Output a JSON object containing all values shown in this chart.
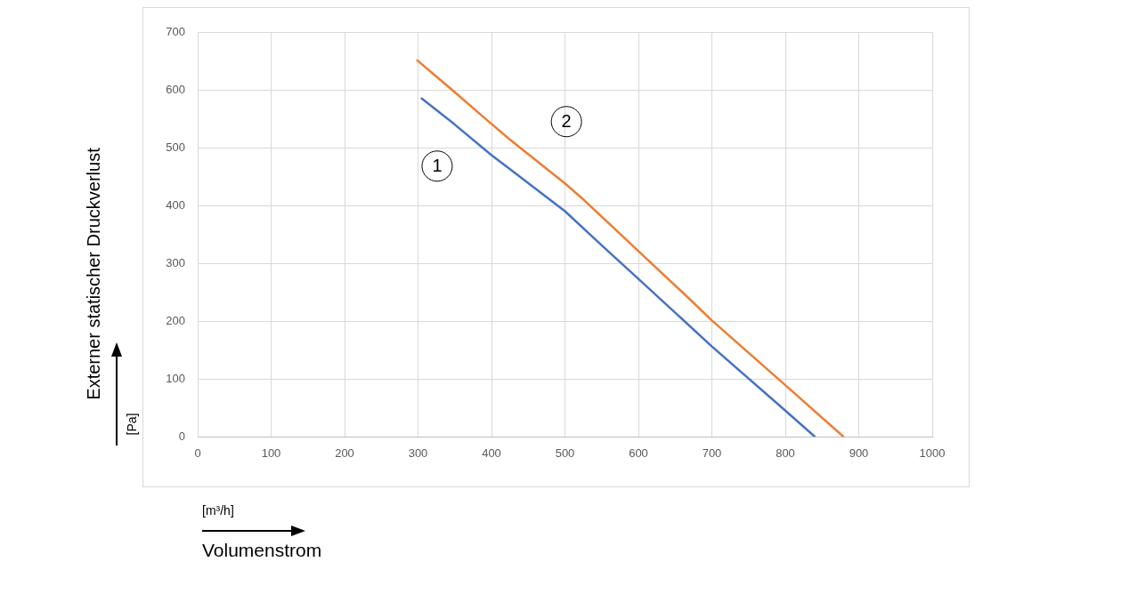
{
  "chart_data": {
    "type": "line",
    "xlabel": "Volumenstrom",
    "ylabel": "Externer statischer Druckverlust",
    "annotations": [
      "[m³/h]",
      "[Pa]",
      {
        "text": "1",
        "x": 326,
        "y": 468
      },
      {
        "text": "2",
        "x": 502,
        "y": 545
      }
    ],
    "series": [
      {
        "color": "#4472c4",
        "x": [
          305,
          349,
          400,
          424,
          500,
          550,
          600,
          700,
          800,
          840
        ],
        "values": [
          585,
          541,
          487,
          464,
          390,
          331,
          273,
          156,
          45,
          0
        ]
      },
      {
        "color": "#ed7d31",
        "x": [
          299,
          349,
          400,
          424,
          500,
          527,
          600,
          668,
          700,
          800,
          879
        ],
        "values": [
          651,
          597,
          541,
          515,
          438,
          408,
          321,
          240,
          201,
          89,
          0
        ]
      }
    ],
    "xlim": [
      0,
      1000
    ],
    "xticks": [
      0,
      100,
      200,
      300,
      400,
      500,
      600,
      700,
      800,
      900,
      1000
    ],
    "ylim": [
      0,
      700
    ],
    "yticks": [
      0,
      100,
      200,
      300,
      400,
      500,
      600,
      700
    ],
    "grid": true,
    "marker": "none",
    "line_style": "solid"
  }
}
